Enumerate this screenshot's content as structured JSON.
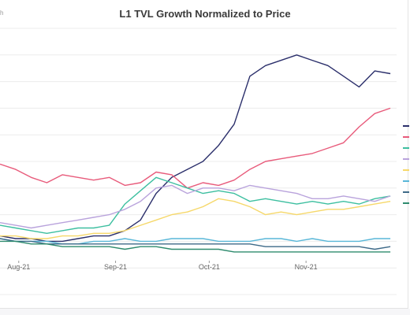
{
  "chart_data": {
    "type": "line",
    "title": "L1 TVL Growth Normalized to Price",
    "top_left_label": "h",
    "x": [
      "2021-07-26",
      "2021-07-31",
      "2021-08-05",
      "2021-08-10",
      "2021-08-15",
      "2021-08-20",
      "2021-08-25",
      "2021-08-30",
      "2021-09-04",
      "2021-09-09",
      "2021-09-14",
      "2021-09-19",
      "2021-09-24",
      "2021-09-29",
      "2021-10-04",
      "2021-10-09",
      "2021-10-14",
      "2021-10-19",
      "2021-10-24",
      "2021-10-29",
      "2021-11-03",
      "2021-11-08",
      "2021-11-13",
      "2021-11-18",
      "2021-11-23",
      "2021-11-28"
    ],
    "x_ticks": [
      "Aug-21",
      "Sep-21",
      "Oct-21",
      "Nov-21"
    ],
    "x_tick_dates": [
      "2021-08-01",
      "2021-09-01",
      "2021-10-01",
      "2021-11-01"
    ],
    "ylim": [
      0,
      100
    ],
    "grid": true,
    "legend": "right",
    "series": [
      {
        "color": "#2b2f6b",
        "values": [
          22,
          21,
          21,
          20,
          20,
          21,
          22,
          22,
          24,
          28,
          38,
          44,
          47,
          50,
          56,
          64,
          82,
          86,
          88,
          90,
          88,
          86,
          82,
          78,
          84,
          83
        ]
      },
      {
        "color": "#e85b7b",
        "values": [
          49,
          47,
          44,
          42,
          45,
          44,
          43,
          44,
          41,
          42,
          46,
          45,
          40,
          42,
          41,
          43,
          47,
          50,
          51,
          52,
          53,
          55,
          57,
          63,
          68,
          70
        ]
      },
      {
        "color": "#3dbfa0",
        "values": [
          26,
          25,
          24,
          23,
          24,
          25,
          25,
          26,
          34,
          39,
          44,
          42,
          40,
          38,
          39,
          38,
          35,
          36,
          35,
          34,
          35,
          34,
          35,
          34,
          36,
          37
        ]
      },
      {
        "color": "#b9a3dc",
        "values": [
          27,
          26,
          25,
          26,
          27,
          28,
          29,
          30,
          32,
          35,
          40,
          41,
          38,
          40,
          40,
          39,
          41,
          40,
          39,
          38,
          36,
          36,
          37,
          36,
          35,
          37
        ]
      },
      {
        "color": "#f6d86a",
        "values": [
          22,
          22,
          21,
          21,
          22,
          22,
          23,
          23,
          24,
          26,
          28,
          30,
          31,
          33,
          36,
          35,
          33,
          30,
          31,
          30,
          31,
          32,
          32,
          33,
          34,
          35
        ]
      },
      {
        "color": "#59b7d8",
        "values": [
          21,
          20,
          20,
          20,
          19,
          19,
          20,
          20,
          21,
          20,
          20,
          21,
          21,
          21,
          20,
          20,
          20,
          21,
          21,
          20,
          21,
          20,
          20,
          20,
          21,
          21
        ]
      },
      {
        "color": "#3e6a88",
        "values": [
          21,
          20,
          20,
          19,
          19,
          19,
          19,
          19,
          19,
          19,
          19,
          19,
          19,
          19,
          19,
          19,
          19,
          18,
          18,
          18,
          18,
          18,
          18,
          18,
          17,
          18
        ]
      },
      {
        "color": "#2e8b6e",
        "values": [
          20,
          20,
          19,
          19,
          18,
          18,
          18,
          18,
          17,
          18,
          18,
          17,
          17,
          17,
          17,
          16,
          16,
          16,
          16,
          16,
          16,
          16,
          16,
          16,
          16,
          16
        ]
      }
    ]
  }
}
